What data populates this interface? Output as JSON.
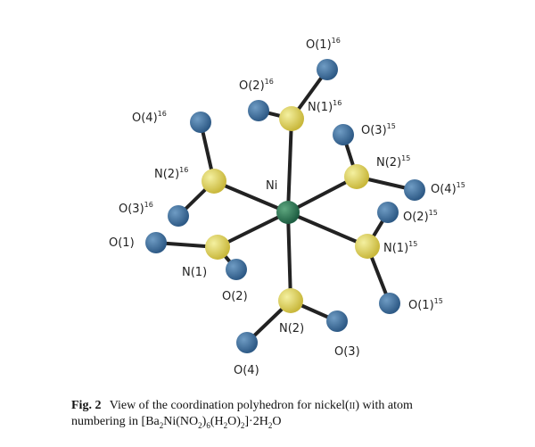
{
  "atoms": [
    {
      "label": "O(1)",
      "sup": "16"
    },
    {
      "label": "O(2)",
      "sup": "16"
    },
    {
      "label": "N(1)",
      "sup": "16"
    },
    {
      "label": "O(4)",
      "sup": "16"
    },
    {
      "label": "N(2)",
      "sup": "16"
    },
    {
      "label": "O(3)",
      "sup": "16"
    },
    {
      "label": "Ni"
    },
    {
      "label": "O(3)",
      "sup": "15"
    },
    {
      "label": "N(2)",
      "sup": "15"
    },
    {
      "label": "O(4)",
      "sup": "15"
    },
    {
      "label": "O(2)",
      "sup": "15"
    },
    {
      "label": "N(1)",
      "sup": "15"
    },
    {
      "label": "O(1)",
      "sup": "15"
    },
    {
      "label": "O(1)"
    },
    {
      "label": "N(1)"
    },
    {
      "label": "O(2)"
    },
    {
      "label": "N(2)"
    },
    {
      "label": "O(3)"
    },
    {
      "label": "O(4)"
    }
  ],
  "caption": {
    "label": "Fig. 2",
    "line1": [
      "View of the coordination polyhedron for nickel(",
      "II",
      ") with atom"
    ],
    "line2": [
      "numbering in [Ba",
      "2",
      "Ni(NO",
      "2",
      ")",
      "6",
      "(H",
      "2",
      "O)",
      "2",
      "]·2H",
      "2",
      "O"
    ]
  }
}
